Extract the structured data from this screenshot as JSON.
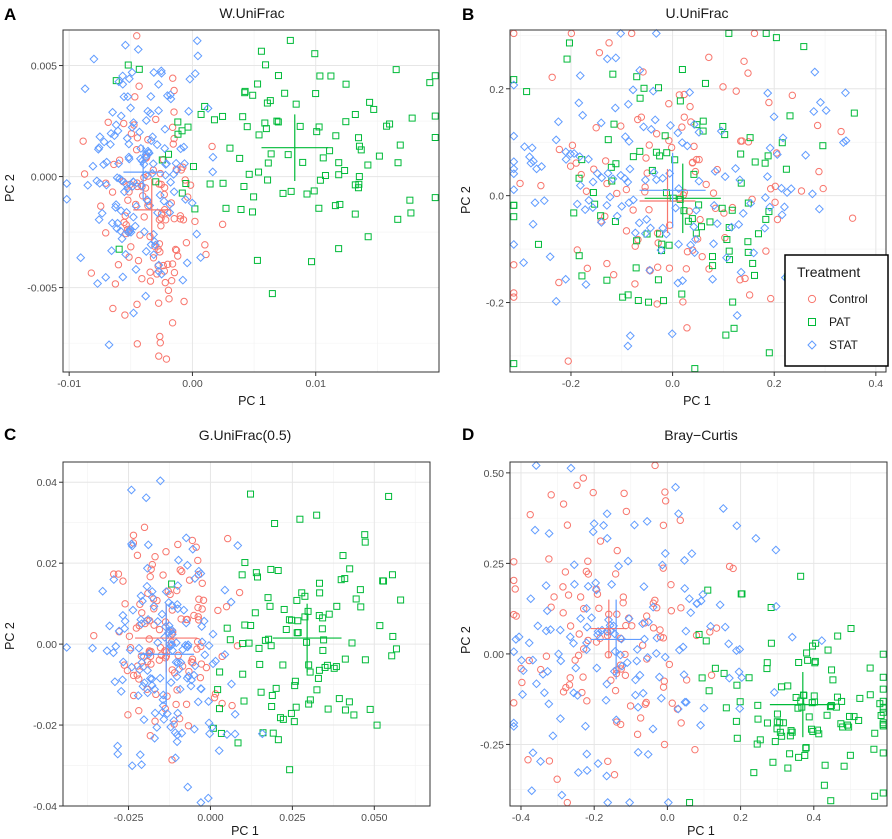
{
  "colors": {
    "Control": "#F8766D",
    "PAT": "#00BA38",
    "STAT": "#619CFF"
  },
  "legend": {
    "title": "Treatment",
    "items": [
      "Control",
      "PAT",
      "STAT"
    ]
  },
  "chart_data": [
    {
      "panel_label": "A",
      "type": "scatter",
      "title": "W.UniFrac",
      "xlabel": "PC 1",
      "ylabel": "PC 2",
      "xlim": [
        -0.0105,
        0.02
      ],
      "ylim": [
        -0.0088,
        0.0066
      ],
      "xticks": [
        -0.01,
        0,
        0.01
      ],
      "xtick_labels": [
        "-0.01",
        "0.00",
        "0.01"
      ],
      "yticks": [
        -0.005,
        0,
        0.005
      ],
      "ytick_labels": [
        "-0.005",
        "0.000",
        "0.005"
      ],
      "groups": {
        "Control": {
          "cx": -0.0033,
          "cy": -0.0015,
          "sx": 0.0022,
          "sy": 0.0026,
          "n": 120
        },
        "PAT": {
          "cx": 0.0083,
          "cy": 0.0013,
          "sx": 0.0058,
          "sy": 0.0025,
          "n": 110
        },
        "STAT": {
          "cx": -0.004,
          "cy": 0.0002,
          "sx": 0.0026,
          "sy": 0.003,
          "n": 150
        }
      },
      "centroids": [
        {
          "group": "Control",
          "x": -0.0033,
          "y": -0.0015,
          "hw": 0.0015,
          "hh": 0.0014
        },
        {
          "group": "PAT",
          "x": 0.0083,
          "y": 0.0013,
          "hw": 0.0027,
          "hh": 0.0015
        },
        {
          "group": "STAT",
          "x": -0.004,
          "y": 0.0002,
          "hw": 0.0016,
          "hh": 0.0012
        }
      ]
    },
    {
      "panel_label": "B",
      "type": "scatter",
      "title": "U.UniFrac",
      "xlabel": "PC 1",
      "ylabel": "PC 2",
      "xlim": [
        -0.32,
        0.42
      ],
      "ylim": [
        -0.33,
        0.31
      ],
      "xticks": [
        -0.2,
        0,
        0.2,
        0.4
      ],
      "xtick_labels": [
        "-0.2",
        "0.0",
        "0.2",
        "0.4"
      ],
      "yticks": [
        -0.2,
        0,
        0.2
      ],
      "ytick_labels": [
        "-0.2",
        "0.0",
        "0.2"
      ],
      "groups": {
        "Control": {
          "cx": -0.01,
          "cy": -0.01,
          "sx": 0.15,
          "sy": 0.14,
          "n": 120
        },
        "PAT": {
          "cx": 0.04,
          "cy": -0.01,
          "sx": 0.17,
          "sy": 0.15,
          "n": 110
        },
        "STAT": {
          "cx": 0.0,
          "cy": 0.01,
          "sx": 0.18,
          "sy": 0.13,
          "n": 150
        }
      },
      "centroids": [
        {
          "group": "Control",
          "x": -0.01,
          "y": -0.01,
          "hw": 0.055,
          "hh": 0.06
        },
        {
          "group": "PAT",
          "x": 0.02,
          "y": -0.005,
          "hw": 0.075,
          "hh": 0.065
        },
        {
          "group": "STAT",
          "x": 0.0,
          "y": 0.01,
          "hw": 0.065,
          "hh": 0.07
        }
      ]
    },
    {
      "panel_label": "C",
      "type": "scatter",
      "title": "G.UniFrac(0.5)",
      "xlabel": "PC 1",
      "ylabel": "PC 2",
      "xlim": [
        -0.045,
        0.067
      ],
      "ylim": [
        -0.04,
        0.045
      ],
      "xticks": [
        -0.025,
        0,
        0.025,
        0.05
      ],
      "xtick_labels": [
        "-0.025",
        "0.000",
        "0.025",
        "0.050"
      ],
      "yticks": [
        -0.04,
        -0.02,
        0,
        0.02,
        0.04
      ],
      "ytick_labels": [
        "-0.04",
        "-0.02",
        "0.00",
        "0.02",
        "0.04"
      ],
      "groups": {
        "Control": {
          "cx": -0.0135,
          "cy": 0.0015,
          "sx": 0.009,
          "sy": 0.013,
          "n": 120
        },
        "PAT": {
          "cx": 0.0295,
          "cy": 0.0015,
          "sx": 0.014,
          "sy": 0.014,
          "n": 110
        },
        "STAT": {
          "cx": -0.0135,
          "cy": -0.0025,
          "sx": 0.01,
          "sy": 0.015,
          "n": 150
        }
      },
      "centroids": [
        {
          "group": "Control",
          "x": -0.0135,
          "y": 0.0015,
          "hw": 0.0095,
          "hh": 0.0085
        },
        {
          "group": "PAT",
          "x": 0.0295,
          "y": 0.0015,
          "hw": 0.0105,
          "hh": 0.0085
        },
        {
          "group": "STAT",
          "x": -0.0135,
          "y": -0.0025,
          "hw": 0.0085,
          "hh": 0.0125
        }
      ]
    },
    {
      "panel_label": "D",
      "type": "scatter",
      "title": "Bray−Curtis",
      "xlabel": "PC 1",
      "ylabel": "PC 2",
      "xlim": [
        -0.43,
        0.6
      ],
      "ylim": [
        -0.42,
        0.53
      ],
      "xticks": [
        -0.4,
        -0.2,
        0,
        0.2,
        0.4
      ],
      "xtick_labels": [
        "-0.4",
        "-0.2",
        "0.0",
        "0.2",
        "0.4"
      ],
      "yticks": [
        -0.25,
        0,
        0.25,
        0.5
      ],
      "ytick_labels": [
        "-0.25",
        "0.00",
        "0.25",
        "0.50"
      ],
      "groups": {
        "Control": {
          "cx": -0.16,
          "cy": 0.07,
          "sx": 0.16,
          "sy": 0.19,
          "n": 120
        },
        "PAT": {
          "cx": 0.37,
          "cy": -0.14,
          "sx": 0.14,
          "sy": 0.12,
          "n": 110
        },
        "STAT": {
          "cx": -0.14,
          "cy": 0.04,
          "sx": 0.17,
          "sy": 0.2,
          "n": 150
        }
      },
      "centroids": [
        {
          "group": "Control",
          "x": -0.16,
          "y": 0.07,
          "hw": 0.05,
          "hh": 0.08
        },
        {
          "group": "PAT",
          "x": 0.37,
          "y": -0.14,
          "hw": 0.09,
          "hh": 0.09
        },
        {
          "group": "STAT",
          "x": -0.14,
          "y": 0.04,
          "hw": 0.07,
          "hh": 0.11
        }
      ]
    }
  ]
}
